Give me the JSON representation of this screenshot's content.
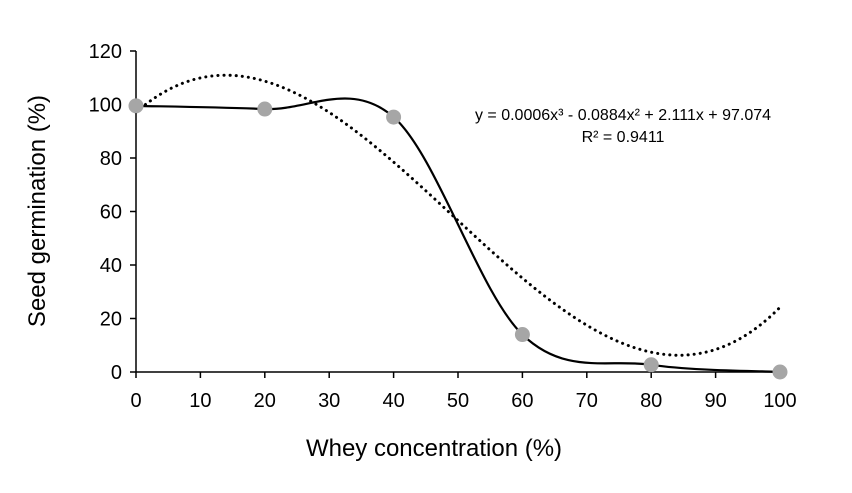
{
  "chart_data": {
    "type": "line",
    "title": "",
    "xlabel": "Whey concentration (%)",
    "ylabel": "Seed germination (%)",
    "xlim": [
      0,
      100
    ],
    "ylim": [
      0,
      120
    ],
    "x_ticks": [
      0,
      10,
      20,
      30,
      40,
      50,
      60,
      70,
      80,
      90,
      100
    ],
    "y_ticks": [
      0,
      20,
      40,
      60,
      80,
      100,
      120
    ],
    "grid": false,
    "series": [
      {
        "name": "Seed germination",
        "style": "smoothed-solid-with-markers",
        "color": "#000000",
        "marker_color": "#a6a6a6",
        "x": [
          0,
          20,
          40,
          60,
          80,
          100
        ],
        "values": [
          99.5,
          98.3,
          95.3,
          14.0,
          2.7,
          0.0
        ]
      },
      {
        "name": "Polynomial trendline",
        "style": "dotted",
        "color": "#000000",
        "coefficients": [
          0.0006,
          -0.0884,
          2.111,
          97.074
        ]
      }
    ],
    "annotations": {
      "equation": "y = 0.0006x³ - 0.0884x² + 2.111x + 97.074",
      "r_squared": "R² = 0.9411"
    }
  }
}
